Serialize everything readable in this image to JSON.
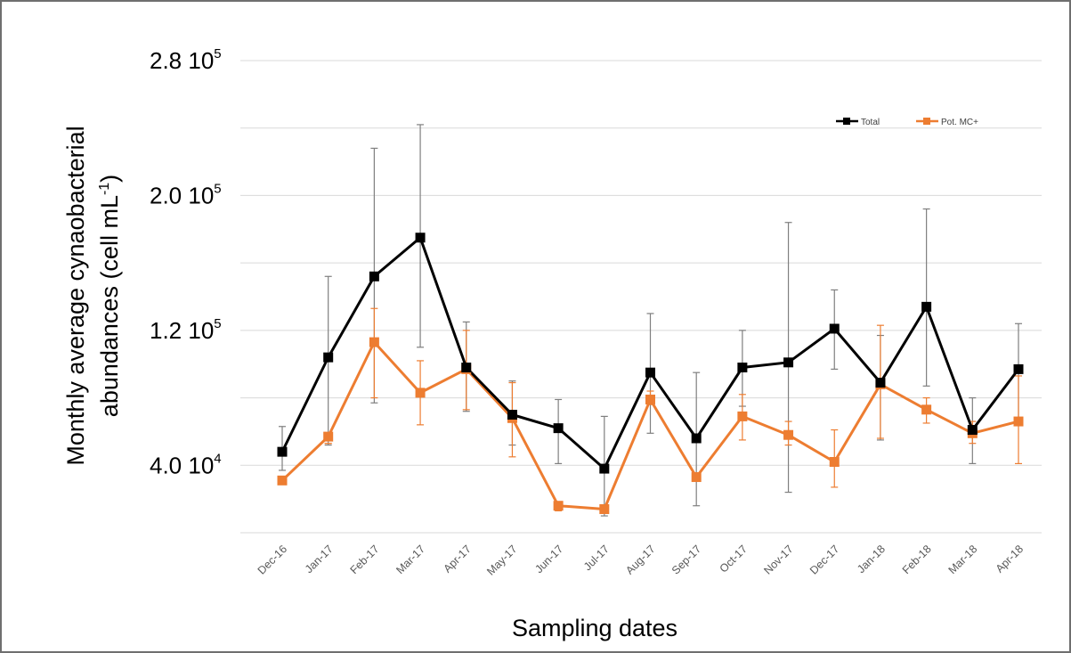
{
  "chart_data": {
    "type": "line",
    "title": "",
    "xlabel": "Sampling dates",
    "ylabel_line1": "Monthly average cynaobacterial",
    "ylabel_line2": "abundances (cell mL",
    "ylabel_sup": "-1",
    "ylabel_close": ")",
    "categories": [
      "Dec-16",
      "Jan-17",
      "Feb-17",
      "Mar-17",
      "Apr-17",
      "May-17",
      "Jun-17",
      "Jul-17",
      "Aug-17",
      "Sep-17",
      "Oct-17",
      "Nov-17",
      "Dec-17",
      "Jan-18",
      "Feb-18",
      "Mar-18",
      "Apr-18"
    ],
    "ylim": [
      0,
      280000
    ],
    "gridlines": [
      0,
      40000,
      80000,
      120000,
      160000,
      200000,
      240000,
      280000
    ],
    "yticks": [
      {
        "value": 40000,
        "mantissa": "4.0 10",
        "exp": "4"
      },
      {
        "value": 120000,
        "mantissa": "1.2 10",
        "exp": "5"
      },
      {
        "value": 200000,
        "mantissa": "2.0 10",
        "exp": "5"
      },
      {
        "value": 280000,
        "mantissa": "2.8 10",
        "exp": "5"
      }
    ],
    "grid": true,
    "legend_position": "top-right",
    "series": [
      {
        "name": "Total",
        "color": "#000000",
        "values": [
          48000,
          104000,
          152000,
          175000,
          98000,
          70000,
          62000,
          38000,
          95000,
          56000,
          98000,
          101000,
          121000,
          89000,
          134000,
          61000,
          97000
        ],
        "err_high": [
          63000,
          152000,
          228000,
          242000,
          125000,
          90000,
          79000,
          69000,
          130000,
          95000,
          120000,
          184000,
          144000,
          117000,
          192000,
          80000,
          124000
        ],
        "err_low": [
          37000,
          52000,
          77000,
          110000,
          72000,
          52000,
          41000,
          10000,
          59000,
          16000,
          75000,
          24000,
          97000,
          55000,
          87000,
          41000,
          64000
        ]
      },
      {
        "name": "Pot. MC+",
        "color": "#ed7d31",
        "values": [
          31000,
          57000,
          113000,
          83000,
          97000,
          68000,
          16000,
          14000,
          79000,
          33000,
          69000,
          58000,
          42000,
          88000,
          73000,
          59000,
          66000
        ],
        "err_high": [
          31000,
          53000,
          133000,
          102000,
          120000,
          89000,
          18000,
          14000,
          84000,
          35000,
          82000,
          66000,
          61000,
          123000,
          80000,
          66000,
          93000
        ],
        "err_low": [
          31000,
          53000,
          80000,
          64000,
          73000,
          45000,
          13000,
          14000,
          76000,
          33000,
          55000,
          52000,
          27000,
          56000,
          65000,
          53000,
          41000
        ]
      }
    ]
  }
}
